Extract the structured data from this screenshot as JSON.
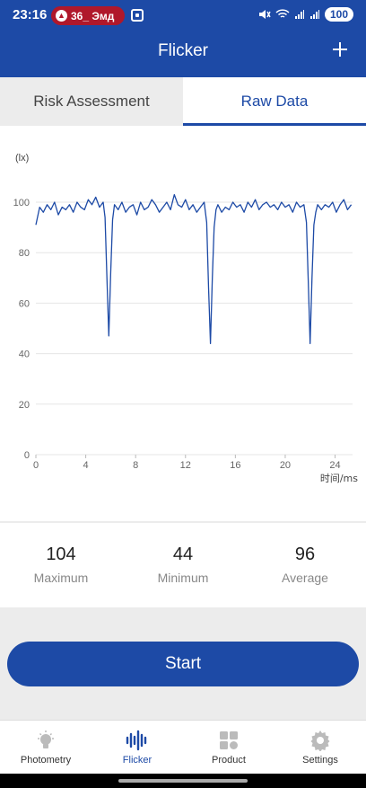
{
  "status_bar": {
    "time": "23:16",
    "notification": "36_ Эмд",
    "battery": "100"
  },
  "app_bar": {
    "title": "Flicker",
    "add_icon": "plus-icon"
  },
  "tabs": [
    {
      "label": "Risk Assessment",
      "active": false
    },
    {
      "label": "Raw Data",
      "active": true
    }
  ],
  "chart_data": {
    "type": "line",
    "ylabel": "(lx)",
    "xlabel": "时间/ms",
    "xlim": [
      0,
      25.4
    ],
    "ylim": [
      0,
      100
    ],
    "x_ticks": [
      "0",
      "4",
      "8",
      "12",
      "16",
      "20",
      "24"
    ],
    "y_ticks": [
      "0",
      "20",
      "40",
      "60",
      "80",
      "100"
    ],
    "series": [
      {
        "x": [
          0,
          0.3,
          0.6,
          0.9,
          1.2,
          1.5,
          1.8,
          2.1,
          2.4,
          2.7,
          3.0,
          3.3,
          3.6,
          3.9,
          4.2,
          4.5,
          4.8,
          5.1,
          5.4,
          5.55,
          5.7,
          5.85,
          6.0,
          6.15,
          6.3,
          6.6,
          6.9,
          7.2,
          7.5,
          7.8,
          8.1,
          8.4,
          8.7,
          9.0,
          9.3,
          9.6,
          9.9,
          10.2,
          10.5,
          10.8,
          11.1,
          11.4,
          11.7,
          12.0,
          12.3,
          12.6,
          12.9,
          13.2,
          13.5,
          13.7,
          13.85,
          14.0,
          14.15,
          14.3,
          14.45,
          14.6,
          14.9,
          15.2,
          15.5,
          15.8,
          16.1,
          16.4,
          16.7,
          17.0,
          17.3,
          17.6,
          17.9,
          18.2,
          18.5,
          18.8,
          19.1,
          19.4,
          19.7,
          20.0,
          20.3,
          20.6,
          20.9,
          21.2,
          21.5,
          21.7,
          21.85,
          22.0,
          22.15,
          22.3,
          22.45,
          22.6,
          22.9,
          23.2,
          23.5,
          23.8,
          24.1,
          24.4,
          24.7,
          25.0,
          25.3
        ],
        "y": [
          91,
          98,
          96,
          99,
          97,
          100,
          95,
          98,
          97,
          99,
          96,
          100,
          98,
          97,
          101,
          99,
          102,
          98,
          100,
          94,
          70,
          47,
          72,
          93,
          99,
          97,
          100,
          96,
          98,
          99,
          95,
          100,
          97,
          98,
          101,
          99,
          96,
          98,
          100,
          97,
          103,
          99,
          98,
          101,
          97,
          99,
          96,
          98,
          100,
          92,
          66,
          44,
          70,
          90,
          97,
          99,
          96,
          98,
          97,
          100,
          98,
          99,
          96,
          100,
          98,
          101,
          97,
          99,
          100,
          98,
          99,
          97,
          100,
          98,
          99,
          96,
          100,
          98,
          99,
          92,
          68,
          44,
          70,
          91,
          96,
          99,
          97,
          99,
          98,
          100,
          96,
          99,
          101,
          97,
          99
        ]
      }
    ]
  },
  "stats": [
    {
      "value": "104",
      "label": "Maximum"
    },
    {
      "value": "44",
      "label": "Minimum"
    },
    {
      "value": "96",
      "label": "Average"
    }
  ],
  "start_button": {
    "label": "Start"
  },
  "bottom_nav": [
    {
      "label": "Photometry",
      "icon": "bulb-icon",
      "active": false
    },
    {
      "label": "Flicker",
      "icon": "waveform-icon",
      "active": true
    },
    {
      "label": "Product",
      "icon": "grid-icon",
      "active": false
    },
    {
      "label": "Settings",
      "icon": "gear-icon",
      "active": false
    }
  ],
  "colors": {
    "primary": "#1d4aa6",
    "line": "#1d4aa6",
    "alert": "#b0182b"
  }
}
